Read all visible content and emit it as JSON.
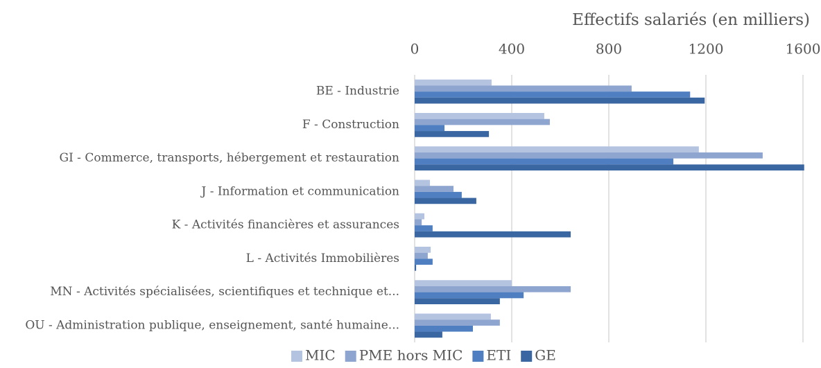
{
  "chart_data": {
    "type": "hbar",
    "x_axis_label": "Effectifs salariés (en milliers)",
    "categories": [
      "BE - Industrie",
      "F - Construction",
      "GI - Commerce, transports, hébergement et restauration",
      "J - Information et communication",
      "K - Activités financières et assurances",
      "L - Activités Immobilières",
      "MN - Activités spécialisées,  scientifiques et technique et...",
      "OU -  Administration publique, enseignement, santé humaine..."
    ],
    "series": [
      {
        "name": "MIC",
        "color": "#b4c3e0",
        "values": [
          317,
          534,
          1171,
          63,
          40,
          66,
          400,
          314
        ]
      },
      {
        "name": "PME hors MIC",
        "color": "#8ea5cf",
        "values": [
          894,
          557,
          1434,
          160,
          29,
          54,
          643,
          351
        ]
      },
      {
        "name": "ETI",
        "color": "#4f7fc0",
        "values": [
          1135,
          123,
          1066,
          194,
          74,
          74,
          449,
          240
        ]
      },
      {
        "name": "GE",
        "color": "#3a66a2",
        "values": [
          1195,
          306,
          1605,
          254,
          643,
          6,
          351,
          114
        ]
      }
    ],
    "xlim": [
      0,
      1600
    ],
    "xticks": [
      0,
      400,
      800,
      1200,
      1600
    ],
    "grid": true,
    "legend": "bottom"
  }
}
